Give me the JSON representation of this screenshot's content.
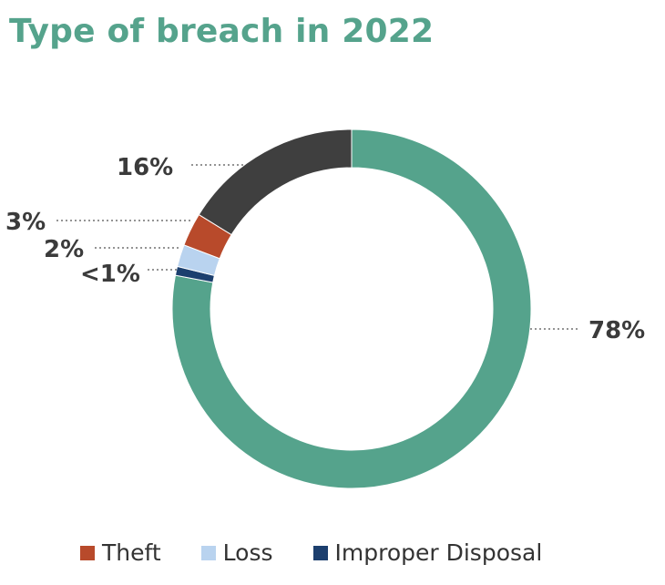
{
  "title": "Type of breach in 2022",
  "colors": {
    "title": "#55a38c",
    "label": "#3b3b3b",
    "leader": "#555555"
  },
  "chart_data": {
    "type": "pie",
    "title": "Type of breach in 2022",
    "donut": true,
    "slices": [
      {
        "key": "slice-1",
        "value": 78,
        "label": "78%",
        "color": "#55a38c"
      },
      {
        "key": "slice-2",
        "value": 0.8,
        "label": "<1%",
        "color": "#1c3f6e",
        "legend": "Improper Disposal"
      },
      {
        "key": "slice-3",
        "value": 2,
        "label": "2%",
        "color": "#b9d3ef",
        "legend": "Loss"
      },
      {
        "key": "slice-4",
        "value": 3,
        "label": "3%",
        "color": "#b84a2b",
        "legend": "Theft"
      },
      {
        "key": "slice-5",
        "value": 16.2,
        "label": "16%",
        "color": "#3f3f3f"
      }
    ],
    "legend": [
      {
        "label": "Theft",
        "color": "#b84a2b"
      },
      {
        "label": "Loss",
        "color": "#b9d3ef"
      },
      {
        "label": "Improper Disposal",
        "color": "#1c3f6e"
      }
    ],
    "legend_position": "bottom"
  }
}
